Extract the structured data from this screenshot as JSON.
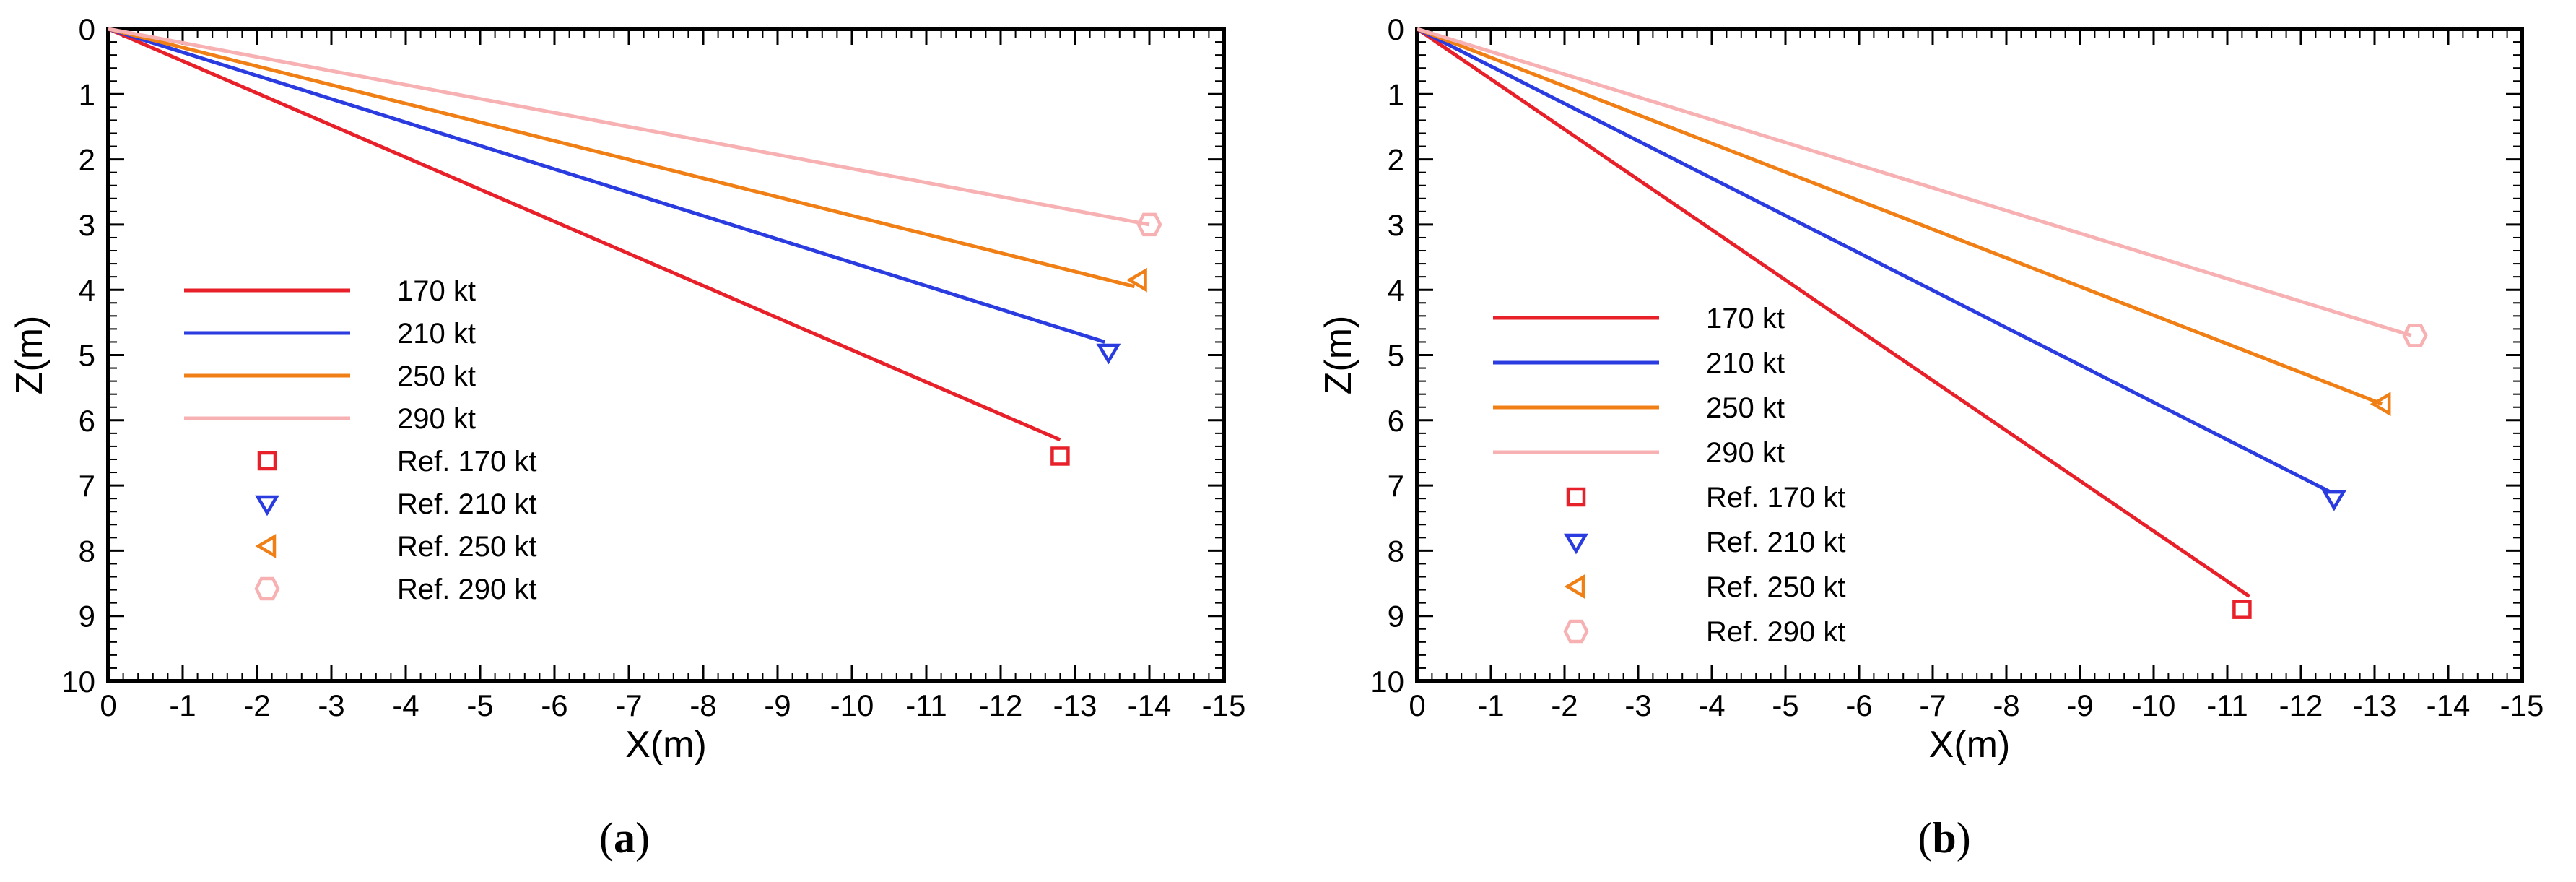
{
  "chart_data": [
    {
      "type": "line",
      "panel_label": "a",
      "xlabel": "X(m)",
      "ylabel": "Z(m)",
      "xlim": [
        0,
        -15
      ],
      "ylim": [
        10,
        0
      ],
      "xticks": [
        0,
        -1,
        -2,
        -3,
        -4,
        -5,
        -6,
        -7,
        -8,
        -9,
        -10,
        -11,
        -12,
        -13,
        -14,
        -15
      ],
      "yticks": [
        0,
        1,
        2,
        3,
        4,
        5,
        6,
        7,
        8,
        9,
        10
      ],
      "legend_position": "left",
      "series": [
        {
          "name": "170 kt",
          "color": "#e8202a",
          "x": [
            0,
            -12.8
          ],
          "z": [
            0,
            6.3
          ]
        },
        {
          "name": "210 kt",
          "color": "#2a3be0",
          "x": [
            0,
            -13.4
          ],
          "z": [
            0,
            4.8
          ]
        },
        {
          "name": "250 kt",
          "color": "#f07f16",
          "x": [
            0,
            -13.8
          ],
          "z": [
            0,
            3.95
          ]
        },
        {
          "name": "290 kt",
          "color": "#f7b1b3",
          "x": [
            0,
            -14.0
          ],
          "z": [
            0,
            3.0
          ]
        }
      ],
      "references": [
        {
          "name": "Ref. 170 kt",
          "marker": "square",
          "color": "#e8202a",
          "x": -12.8,
          "z": 6.55
        },
        {
          "name": "Ref. 210 kt",
          "marker": "triangle-down",
          "color": "#2a3be0",
          "x": -13.45,
          "z": 4.95
        },
        {
          "name": "Ref. 250 kt",
          "marker": "triangle-left",
          "color": "#f07f16",
          "x": -13.85,
          "z": 3.85
        },
        {
          "name": "Ref. 290 kt",
          "marker": "diamond",
          "color": "#f7b1b3",
          "x": -14.0,
          "z": 3.0
        }
      ]
    },
    {
      "type": "line",
      "panel_label": "b",
      "xlabel": "X(m)",
      "ylabel": "Z(m)",
      "xlim": [
        0,
        -15
      ],
      "ylim": [
        10,
        0
      ],
      "xticks": [
        0,
        -1,
        -2,
        -3,
        -4,
        -5,
        -6,
        -7,
        -8,
        -9,
        -10,
        -11,
        -12,
        -13,
        -14,
        -15
      ],
      "yticks": [
        0,
        1,
        2,
        3,
        4,
        5,
        6,
        7,
        8,
        9,
        10
      ],
      "legend_position": "left",
      "series": [
        {
          "name": "170 kt",
          "color": "#e8202a",
          "x": [
            0,
            -11.3
          ],
          "z": [
            0,
            8.7
          ]
        },
        {
          "name": "210 kt",
          "color": "#2a3be0",
          "x": [
            0,
            -12.4
          ],
          "z": [
            0,
            7.1
          ]
        },
        {
          "name": "250 kt",
          "color": "#f07f16",
          "x": [
            0,
            -13.1
          ],
          "z": [
            0,
            5.75
          ]
        },
        {
          "name": "290 kt",
          "color": "#f7b1b3",
          "x": [
            0,
            -13.5
          ],
          "z": [
            0,
            4.7
          ]
        }
      ],
      "references": [
        {
          "name": "Ref. 170 kt",
          "marker": "square",
          "color": "#e8202a",
          "x": -11.2,
          "z": 8.9
        },
        {
          "name": "Ref. 210 kt",
          "marker": "triangle-down",
          "color": "#2a3be0",
          "x": -12.45,
          "z": 7.2
        },
        {
          "name": "Ref. 250 kt",
          "marker": "triangle-left",
          "color": "#f07f16",
          "x": -13.1,
          "z": 5.75
        },
        {
          "name": "Ref. 290 kt",
          "marker": "diamond",
          "color": "#f7b1b3",
          "x": -13.55,
          "z": 4.7
        }
      ]
    }
  ]
}
